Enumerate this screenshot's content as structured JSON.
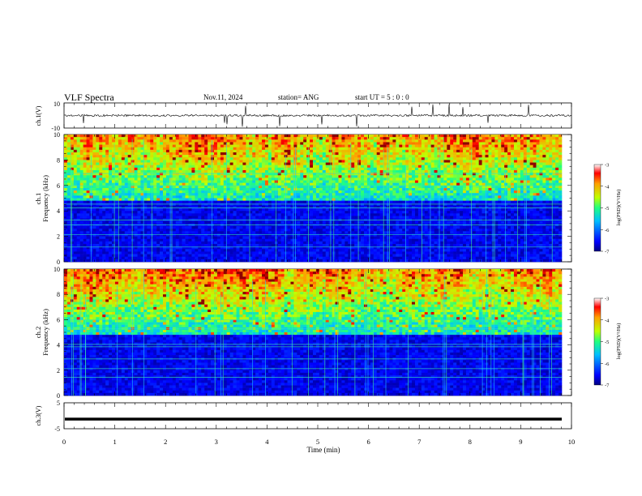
{
  "header": {
    "title": "VLF Spectra",
    "date": "Nov.11, 2024",
    "station": "station= ANG",
    "start": "start  UT =   5 : 0  : 0"
  },
  "chart_data": [
    {
      "type": "line",
      "panel": "ch1-waveform",
      "ylabel": "ch.1(V)",
      "ylim": [
        -10,
        10
      ],
      "yticks": [
        "10",
        "-10"
      ],
      "x_range_min": [
        0,
        10
      ]
    },
    {
      "type": "heatmap",
      "panel": "ch1-spectrogram",
      "ylabel_line1": "ch.1",
      "ylabel_line2": "Frequency (kHz)",
      "ylim_khz": [
        0,
        10
      ],
      "yticks": [
        "0",
        "2",
        "4",
        "6",
        "8",
        "10"
      ],
      "colorbar": {
        "label": "log(PSD)(V²/Hz)",
        "ticks": [
          "-3",
          "-4",
          "-5",
          "-6",
          "-7"
        ],
        "range": [
          -7,
          -3
        ]
      }
    },
    {
      "type": "heatmap",
      "panel": "ch2-spectrogram",
      "ylabel_line1": "ch.2",
      "ylabel_line2": "Frequency (kHz)",
      "ylim_khz": [
        0,
        10
      ],
      "yticks": [
        "0",
        "2",
        "4",
        "6",
        "8",
        "10"
      ],
      "colorbar": {
        "label": "log(PSD)(V²/Hz)",
        "ticks": [
          "-3",
          "-4",
          "-5",
          "-6",
          "-7"
        ],
        "range": [
          -7,
          -3
        ]
      }
    },
    {
      "type": "line",
      "panel": "ch3-waveform",
      "ylabel": "ch.3(V)",
      "ylim": [
        -5,
        5
      ],
      "yticks": [
        "5",
        "-5"
      ],
      "constant_value_V": -1.3
    }
  ],
  "x_axis": {
    "label": "Time (min)",
    "ticks": [
      "0",
      "1",
      "2",
      "3",
      "4",
      "5",
      "6",
      "7",
      "8",
      "9",
      "10"
    ],
    "range": [
      0,
      10
    ]
  }
}
